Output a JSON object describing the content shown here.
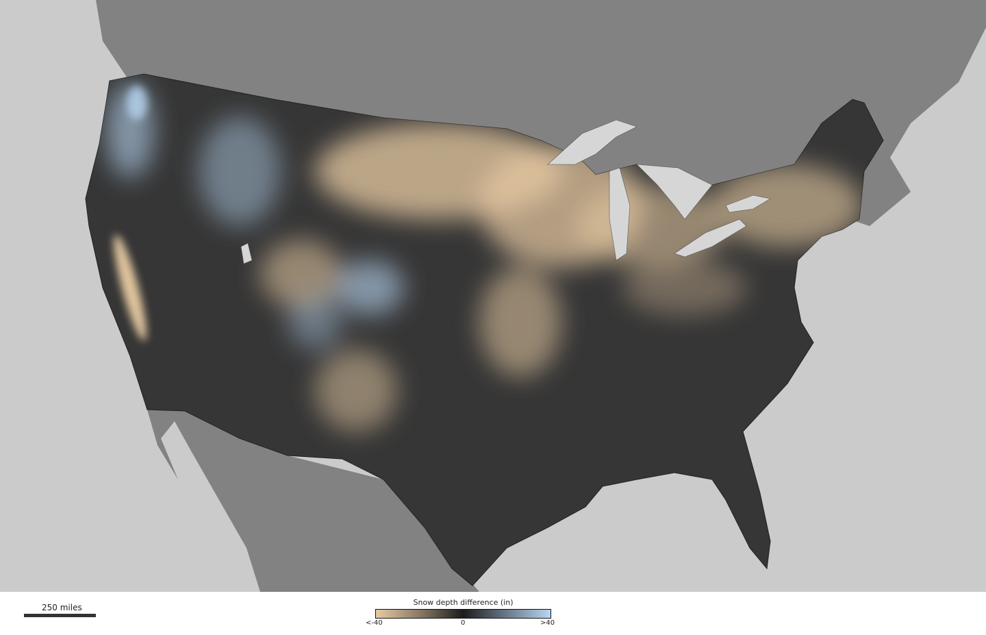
{
  "map": {
    "colors": {
      "ocean": "#cbcbcb",
      "foreign_land": "#828282",
      "us_base": "#363636",
      "lakes": "#d6d6d6",
      "less_snow": "#e8cba3",
      "more_snow": "#b8d6f2"
    }
  },
  "scale": {
    "label": "250 miles"
  },
  "legend": {
    "title": "Snow depth difference (in)",
    "min_label": "<-40",
    "mid_label": "0",
    "max_label": ">40",
    "gradient": [
      "#e8cba3",
      "#8a7a66",
      "#1c1c1c",
      "#6a7a8c",
      "#b8d6f2"
    ]
  }
}
